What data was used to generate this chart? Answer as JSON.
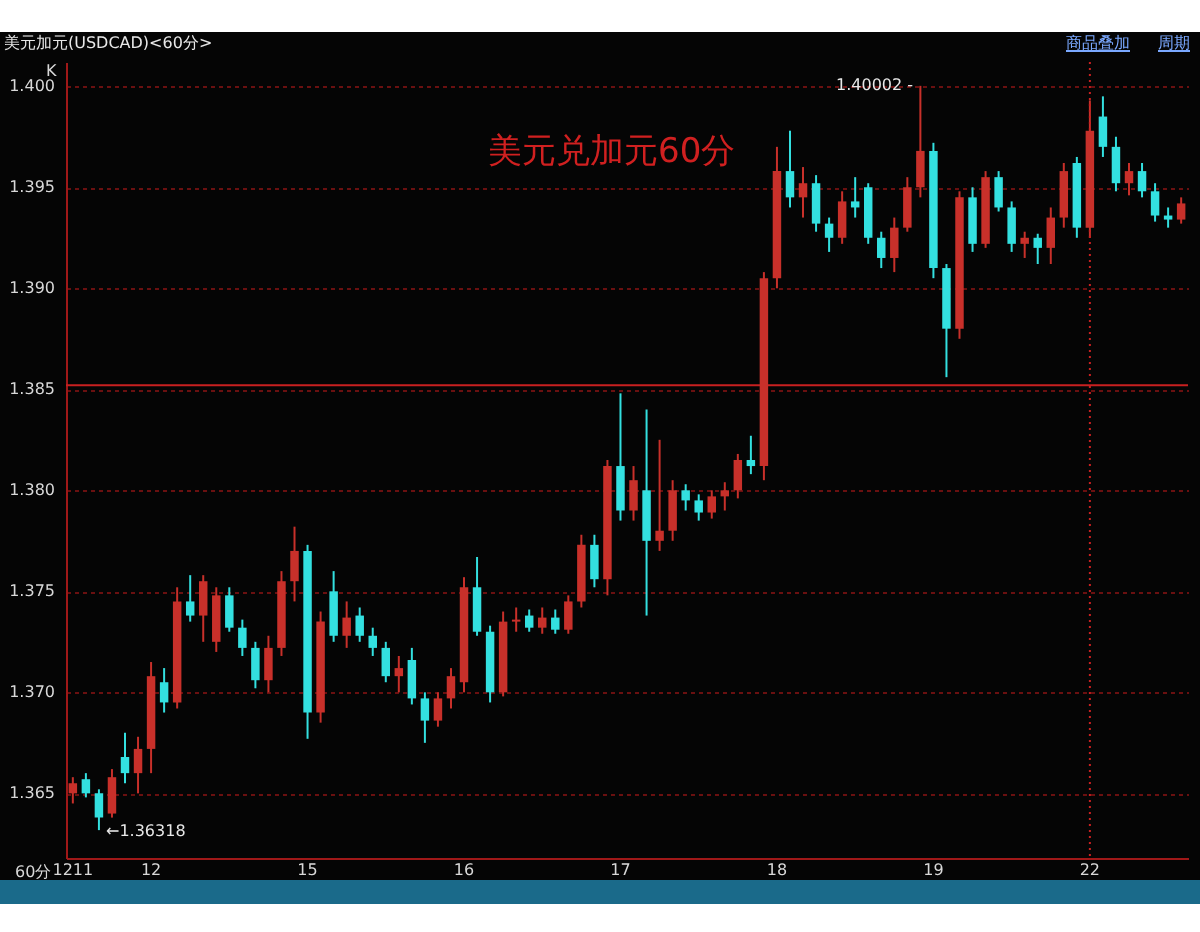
{
  "chart_data": {
    "type": "candlestick",
    "title": "美元加元(USDCAD)<60分>",
    "xlabel": "60分",
    "annotations": [
      "K",
      "美元兑加元60分",
      "商品叠加",
      "周期",
      "1.40002 -",
      "←1.36318"
    ],
    "categories": [
      "1211",
      null,
      null,
      null,
      null,
      null,
      "12",
      null,
      null,
      null,
      null,
      null,
      null,
      null,
      null,
      null,
      null,
      null,
      "15",
      null,
      null,
      null,
      null,
      null,
      null,
      null,
      null,
      null,
      null,
      null,
      "16",
      null,
      null,
      null,
      null,
      null,
      null,
      null,
      null,
      null,
      null,
      null,
      "17",
      null,
      null,
      null,
      null,
      null,
      null,
      null,
      null,
      null,
      null,
      null,
      "18",
      null,
      null,
      null,
      null,
      null,
      null,
      null,
      null,
      null,
      null,
      null,
      "19",
      null,
      null,
      null,
      null,
      null,
      null,
      null,
      null,
      null,
      null,
      null,
      "22",
      null,
      null,
      null,
      null,
      null,
      null,
      null
    ],
    "ohlc": [
      [
        1.365,
        1.3658,
        1.3645,
        1.3655
      ],
      [
        1.3657,
        1.366,
        1.3648,
        1.365
      ],
      [
        1.365,
        1.3652,
        1.36318,
        1.3638
      ],
      [
        1.364,
        1.3662,
        1.3638,
        1.3658
      ],
      [
        1.3668,
        1.368,
        1.3655,
        1.366
      ],
      [
        1.366,
        1.3678,
        1.365,
        1.3672
      ],
      [
        1.3672,
        1.3715,
        1.366,
        1.3708
      ],
      [
        1.3705,
        1.3712,
        1.369,
        1.3695
      ],
      [
        1.3695,
        1.3752,
        1.3692,
        1.3745
      ],
      [
        1.3745,
        1.3758,
        1.3735,
        1.3738
      ],
      [
        1.3738,
        1.3758,
        1.3725,
        1.3755
      ],
      [
        1.3725,
        1.3752,
        1.372,
        1.3748
      ],
      [
        1.3748,
        1.3752,
        1.373,
        1.3732
      ],
      [
        1.3732,
        1.3736,
        1.3718,
        1.3722
      ],
      [
        1.3722,
        1.3725,
        1.3702,
        1.3706
      ],
      [
        1.3706,
        1.3728,
        1.37,
        1.3722
      ],
      [
        1.3722,
        1.376,
        1.3718,
        1.3755
      ],
      [
        1.3755,
        1.3782,
        1.3745,
        1.377
      ],
      [
        1.377,
        1.3773,
        1.3677,
        1.369
      ],
      [
        1.369,
        1.374,
        1.3685,
        1.3735
      ],
      [
        1.375,
        1.376,
        1.3725,
        1.3728
      ],
      [
        1.3728,
        1.3745,
        1.3722,
        1.3737
      ],
      [
        1.3738,
        1.3742,
        1.3725,
        1.3728
      ],
      [
        1.3728,
        1.3732,
        1.3718,
        1.3722
      ],
      [
        1.3722,
        1.3725,
        1.3705,
        1.3708
      ],
      [
        1.3708,
        1.3718,
        1.37,
        1.3712
      ],
      [
        1.3716,
        1.3722,
        1.3694,
        1.3697
      ],
      [
        1.3697,
        1.37,
        1.3675,
        1.3686
      ],
      [
        1.3686,
        1.37,
        1.3683,
        1.3697
      ],
      [
        1.3697,
        1.3712,
        1.3692,
        1.3708
      ],
      [
        1.3705,
        1.3757,
        1.37,
        1.3752
      ],
      [
        1.3752,
        1.3767,
        1.3728,
        1.373
      ],
      [
        1.373,
        1.3733,
        1.3695,
        1.37
      ],
      [
        1.37,
        1.374,
        1.3698,
        1.3735
      ],
      [
        1.3735,
        1.3742,
        1.373,
        1.3736
      ],
      [
        1.3738,
        1.3741,
        1.373,
        1.3732
      ],
      [
        1.3732,
        1.3742,
        1.3729,
        1.3737
      ],
      [
        1.3737,
        1.3741,
        1.3729,
        1.3731
      ],
      [
        1.3731,
        1.3748,
        1.3729,
        1.3745
      ],
      [
        1.3745,
        1.3778,
        1.3742,
        1.3773
      ],
      [
        1.3773,
        1.3778,
        1.3752,
        1.3756
      ],
      [
        1.3756,
        1.3815,
        1.3748,
        1.3812
      ],
      [
        1.3812,
        1.3848,
        1.3785,
        1.379
      ],
      [
        1.379,
        1.3812,
        1.3785,
        1.3805
      ],
      [
        1.38,
        1.384,
        1.3738,
        1.3775
      ],
      [
        1.3775,
        1.3825,
        1.377,
        1.378
      ],
      [
        1.378,
        1.3805,
        1.3775,
        1.38
      ],
      [
        1.38,
        1.3803,
        1.379,
        1.3795
      ],
      [
        1.3795,
        1.3798,
        1.3785,
        1.3789
      ],
      [
        1.3789,
        1.38,
        1.3786,
        1.3797
      ],
      [
        1.3797,
        1.3804,
        1.379,
        1.38
      ],
      [
        1.38,
        1.3818,
        1.3796,
        1.3815
      ],
      [
        1.3815,
        1.3827,
        1.3808,
        1.3812
      ],
      [
        1.3812,
        1.3908,
        1.3805,
        1.3905
      ],
      [
        1.3905,
        1.397,
        1.39,
        1.3958
      ],
      [
        1.3958,
        1.3978,
        1.394,
        1.3945
      ],
      [
        1.3945,
        1.396,
        1.3935,
        1.3952
      ],
      [
        1.3952,
        1.3956,
        1.3928,
        1.3932
      ],
      [
        1.3932,
        1.3935,
        1.3918,
        1.3925
      ],
      [
        1.3925,
        1.3948,
        1.3922,
        1.3943
      ],
      [
        1.3943,
        1.3955,
        1.3935,
        1.394
      ],
      [
        1.395,
        1.3952,
        1.3922,
        1.3925
      ],
      [
        1.3925,
        1.3928,
        1.391,
        1.3915
      ],
      [
        1.3915,
        1.3935,
        1.3908,
        1.393
      ],
      [
        1.393,
        1.3955,
        1.3928,
        1.395
      ],
      [
        1.395,
        1.40002,
        1.3945,
        1.3968
      ],
      [
        1.3968,
        1.3972,
        1.3905,
        1.391
      ],
      [
        1.391,
        1.3912,
        1.3856,
        1.388
      ],
      [
        1.388,
        1.3948,
        1.3875,
        1.3945
      ],
      [
        1.3945,
        1.395,
        1.3918,
        1.3922
      ],
      [
        1.3922,
        1.3958,
        1.392,
        1.3955
      ],
      [
        1.3955,
        1.3958,
        1.3938,
        1.394
      ],
      [
        1.394,
        1.3943,
        1.3918,
        1.3922
      ],
      [
        1.3922,
        1.3928,
        1.3915,
        1.3925
      ],
      [
        1.3925,
        1.3927,
        1.3912,
        1.392
      ],
      [
        1.392,
        1.394,
        1.3912,
        1.3935
      ],
      [
        1.3935,
        1.3962,
        1.393,
        1.3958
      ],
      [
        1.3962,
        1.3965,
        1.3925,
        1.393
      ],
      [
        1.393,
        1.3993,
        1.3925,
        1.3978
      ],
      [
        1.3985,
        1.3995,
        1.3965,
        1.397
      ],
      [
        1.397,
        1.3975,
        1.3948,
        1.3952
      ],
      [
        1.3952,
        1.3962,
        1.3946,
        1.3958
      ],
      [
        1.3958,
        1.3962,
        1.3945,
        1.3948
      ],
      [
        1.3948,
        1.3952,
        1.3933,
        1.3936
      ],
      [
        1.3936,
        1.394,
        1.393,
        1.3934
      ],
      [
        1.3934,
        1.3945,
        1.3932,
        1.3942
      ]
    ],
    "colors": [
      "#c8302a",
      "#33e0e0",
      "#33e0e0",
      "#c8302a",
      "#33e0e0",
      "#c8302a",
      "#c8302a",
      "#33e0e0",
      "#c8302a",
      "#33e0e0",
      "#c8302a",
      "#c8302a",
      "#33e0e0",
      "#33e0e0",
      "#33e0e0",
      "#c8302a",
      "#c8302a",
      "#c8302a",
      "#33e0e0",
      "#c8302a",
      "#33e0e0",
      "#c8302a",
      "#33e0e0",
      "#33e0e0",
      "#33e0e0",
      "#c8302a",
      "#33e0e0",
      "#33e0e0",
      "#c8302a",
      "#c8302a",
      "#c8302a",
      "#33e0e0",
      "#33e0e0",
      "#c8302a",
      "#c8302a",
      "#33e0e0",
      "#c8302a",
      "#33e0e0",
      "#c8302a",
      "#c8302a",
      "#33e0e0",
      "#c8302a",
      "#33e0e0",
      "#c8302a",
      "#33e0e0",
      "#c8302a",
      "#c8302a",
      "#33e0e0",
      "#33e0e0",
      "#c8302a",
      "#c8302a",
      "#c8302a",
      "#33e0e0",
      "#c8302a",
      "#c8302a",
      "#33e0e0",
      "#c8302a",
      "#33e0e0",
      "#33e0e0",
      "#c8302a",
      "#33e0e0",
      "#33e0e0",
      "#33e0e0",
      "#c8302a",
      "#c8302a",
      "#c8302a",
      "#33e0e0",
      "#33e0e0",
      "#c8302a",
      "#33e0e0",
      "#c8302a",
      "#33e0e0",
      "#33e0e0",
      "#c8302a",
      "#33e0e0",
      "#c8302a",
      "#c8302a",
      "#33e0e0",
      "#c8302a",
      "#33e0e0",
      "#33e0e0",
      "#c8302a",
      "#33e0e0",
      "#33e0e0",
      "#33e0e0",
      "#c8302a"
    ],
    "ylim": [
      1.3618,
      1.4012
    ],
    "yticks": [
      1.365,
      {
        "value": 1.37,
        "label": "1.370"
      },
      1.375,
      {
        "value": 1.38,
        "label": "1.380"
      },
      1.385,
      {
        "value": 1.39,
        "label": "1.390"
      },
      1.395,
      {
        "value": 1.4,
        "label": "1.400"
      }
    ],
    "grid": "y",
    "ref_lines": [
      {
        "axis": "y",
        "value": 1.3852,
        "color": "#c82020",
        "line_style": "solid"
      },
      {
        "axis": "x",
        "value": "22",
        "color": "#c82020",
        "line_style": "dotted"
      }
    ]
  }
}
